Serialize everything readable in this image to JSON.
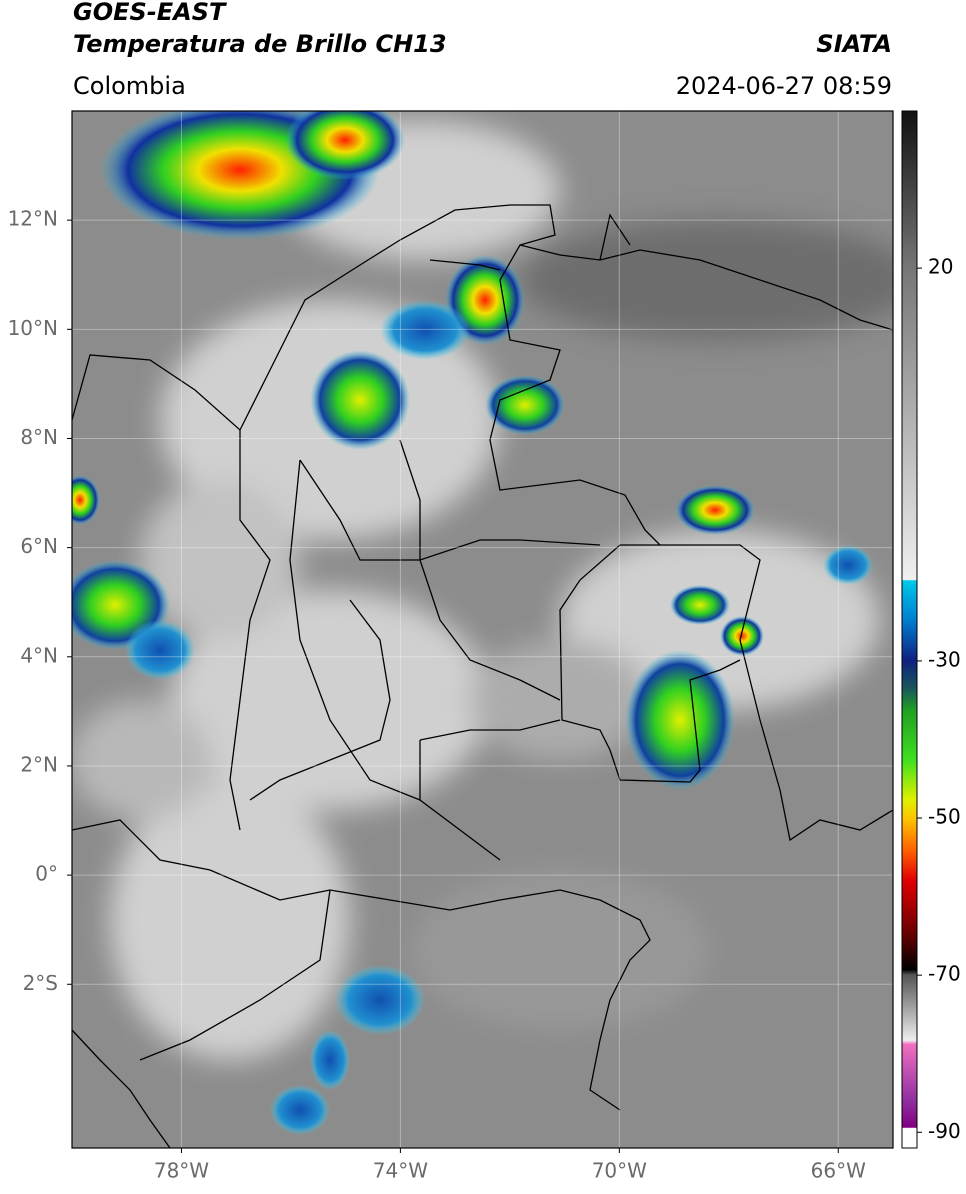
{
  "header": {
    "title": "GOES-EAST",
    "subtitle": "Temperatura de Brillo CH13",
    "source": "SIATA",
    "region": "Colombia",
    "datetime": "2024-06-27 08:59"
  },
  "map": {
    "lonlim": [
      -80,
      -65
    ],
    "latlim": [
      -5,
      14
    ],
    "lon_ticks": [
      {
        "value": -78,
        "label": "78°W"
      },
      {
        "value": -74,
        "label": "74°W"
      },
      {
        "value": -70,
        "label": "70°W"
      },
      {
        "value": -66,
        "label": "66°W"
      }
    ],
    "lat_ticks": [
      {
        "value": 12,
        "label": "12°N"
      },
      {
        "value": 10,
        "label": "10°N"
      },
      {
        "value": 8,
        "label": "8°N"
      },
      {
        "value": 6,
        "label": "6°N"
      },
      {
        "value": 4,
        "label": "4°N"
      },
      {
        "value": 2,
        "label": "2°N"
      },
      {
        "value": 0,
        "label": "0°"
      },
      {
        "value": -2,
        "label": "2°S"
      }
    ],
    "grid": true
  },
  "colorbar": {
    "lim": [
      -92,
      40
    ],
    "ticks": [
      20,
      -30,
      -50,
      -70,
      -90
    ]
  }
}
